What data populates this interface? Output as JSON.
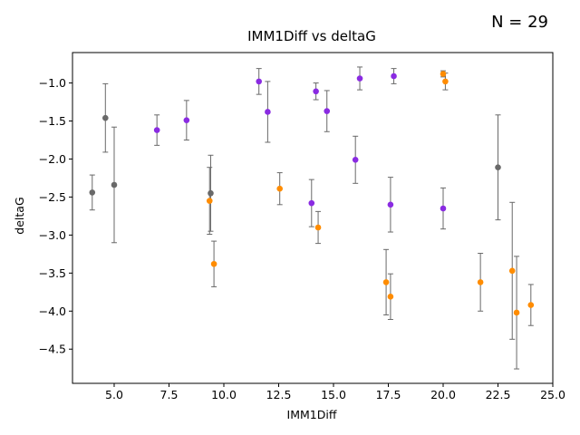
{
  "chart_data": {
    "type": "scatter",
    "title": "IMM1Diff vs deltaG",
    "xlabel": "IMM1Diff",
    "ylabel": "deltaG",
    "annotation": "N = 29",
    "xlim": [
      3.1,
      25.0
    ],
    "ylim": [
      -4.95,
      -0.6
    ],
    "xticks": [
      5.0,
      7.5,
      10.0,
      12.5,
      15.0,
      17.5,
      20.0,
      22.5,
      25.0
    ],
    "xtick_labels": [
      "5.0",
      "7.5",
      "10.0",
      "12.5",
      "15.0",
      "17.5",
      "20.0",
      "22.5",
      "25.0"
    ],
    "yticks": [
      -1.0,
      -1.5,
      -2.0,
      -2.5,
      -3.0,
      -3.5,
      -4.0,
      -4.5
    ],
    "ytick_labels": [
      "−1.0",
      "−1.5",
      "−2.0",
      "−2.5",
      "−3.0",
      "−3.5",
      "−4.0",
      "−4.5"
    ],
    "grid": false,
    "colors": {
      "purple": "#8a2be2",
      "orange": "#ff8c00",
      "gray": "#696969",
      "errorbar": "#696969"
    },
    "points": [
      {
        "x": 4.0,
        "y": -2.44,
        "err": 0.23,
        "group": "gray"
      },
      {
        "x": 4.6,
        "y": -1.46,
        "err": 0.45,
        "group": "gray"
      },
      {
        "x": 5.0,
        "y": -2.34,
        "err": 0.76,
        "group": "gray"
      },
      {
        "x": 6.95,
        "y": -1.62,
        "err": 0.2,
        "group": "purple"
      },
      {
        "x": 8.3,
        "y": -1.49,
        "err": 0.26,
        "group": "purple"
      },
      {
        "x": 9.4,
        "y": -2.45,
        "err": 0.5,
        "group": "gray"
      },
      {
        "x": 9.35,
        "y": -2.55,
        "err": 0.44,
        "group": "orange"
      },
      {
        "x": 9.55,
        "y": -3.38,
        "err": 0.3,
        "group": "orange"
      },
      {
        "x": 11.6,
        "y": -0.98,
        "err": 0.17,
        "group": "purple"
      },
      {
        "x": 12.0,
        "y": -1.38,
        "err": 0.4,
        "group": "purple"
      },
      {
        "x": 12.55,
        "y": -2.39,
        "err": 0.21,
        "group": "orange"
      },
      {
        "x": 14.0,
        "y": -2.58,
        "err": 0.31,
        "group": "purple"
      },
      {
        "x": 14.2,
        "y": -1.11,
        "err": 0.11,
        "group": "purple"
      },
      {
        "x": 14.3,
        "y": -2.9,
        "err": 0.21,
        "group": "orange"
      },
      {
        "x": 14.7,
        "y": -1.37,
        "err": 0.27,
        "group": "purple"
      },
      {
        "x": 16.0,
        "y": -2.01,
        "err": 0.31,
        "group": "purple"
      },
      {
        "x": 16.2,
        "y": -0.94,
        "err": 0.15,
        "group": "purple"
      },
      {
        "x": 17.4,
        "y": -3.62,
        "err": 0.43,
        "group": "orange"
      },
      {
        "x": 17.6,
        "y": -2.6,
        "err": 0.36,
        "group": "purple"
      },
      {
        "x": 17.6,
        "y": -3.81,
        "err": 0.3,
        "group": "orange"
      },
      {
        "x": 17.75,
        "y": -0.91,
        "err": 0.1,
        "group": "purple"
      },
      {
        "x": 20.0,
        "y": -2.65,
        "err": 0.27,
        "group": "purple"
      },
      {
        "x": 20.0,
        "y": -0.88,
        "err": 0.04,
        "group": "orange"
      },
      {
        "x": 20.1,
        "y": -0.98,
        "err": 0.11,
        "group": "orange"
      },
      {
        "x": 21.7,
        "y": -3.62,
        "err": 0.38,
        "group": "orange"
      },
      {
        "x": 22.5,
        "y": -2.11,
        "err": 0.69,
        "group": "gray"
      },
      {
        "x": 23.15,
        "y": -3.47,
        "err": 0.9,
        "group": "orange"
      },
      {
        "x": 23.35,
        "y": -4.02,
        "err": 0.74,
        "group": "orange"
      },
      {
        "x": 24.0,
        "y": -3.92,
        "err": 0.27,
        "group": "orange"
      }
    ]
  }
}
